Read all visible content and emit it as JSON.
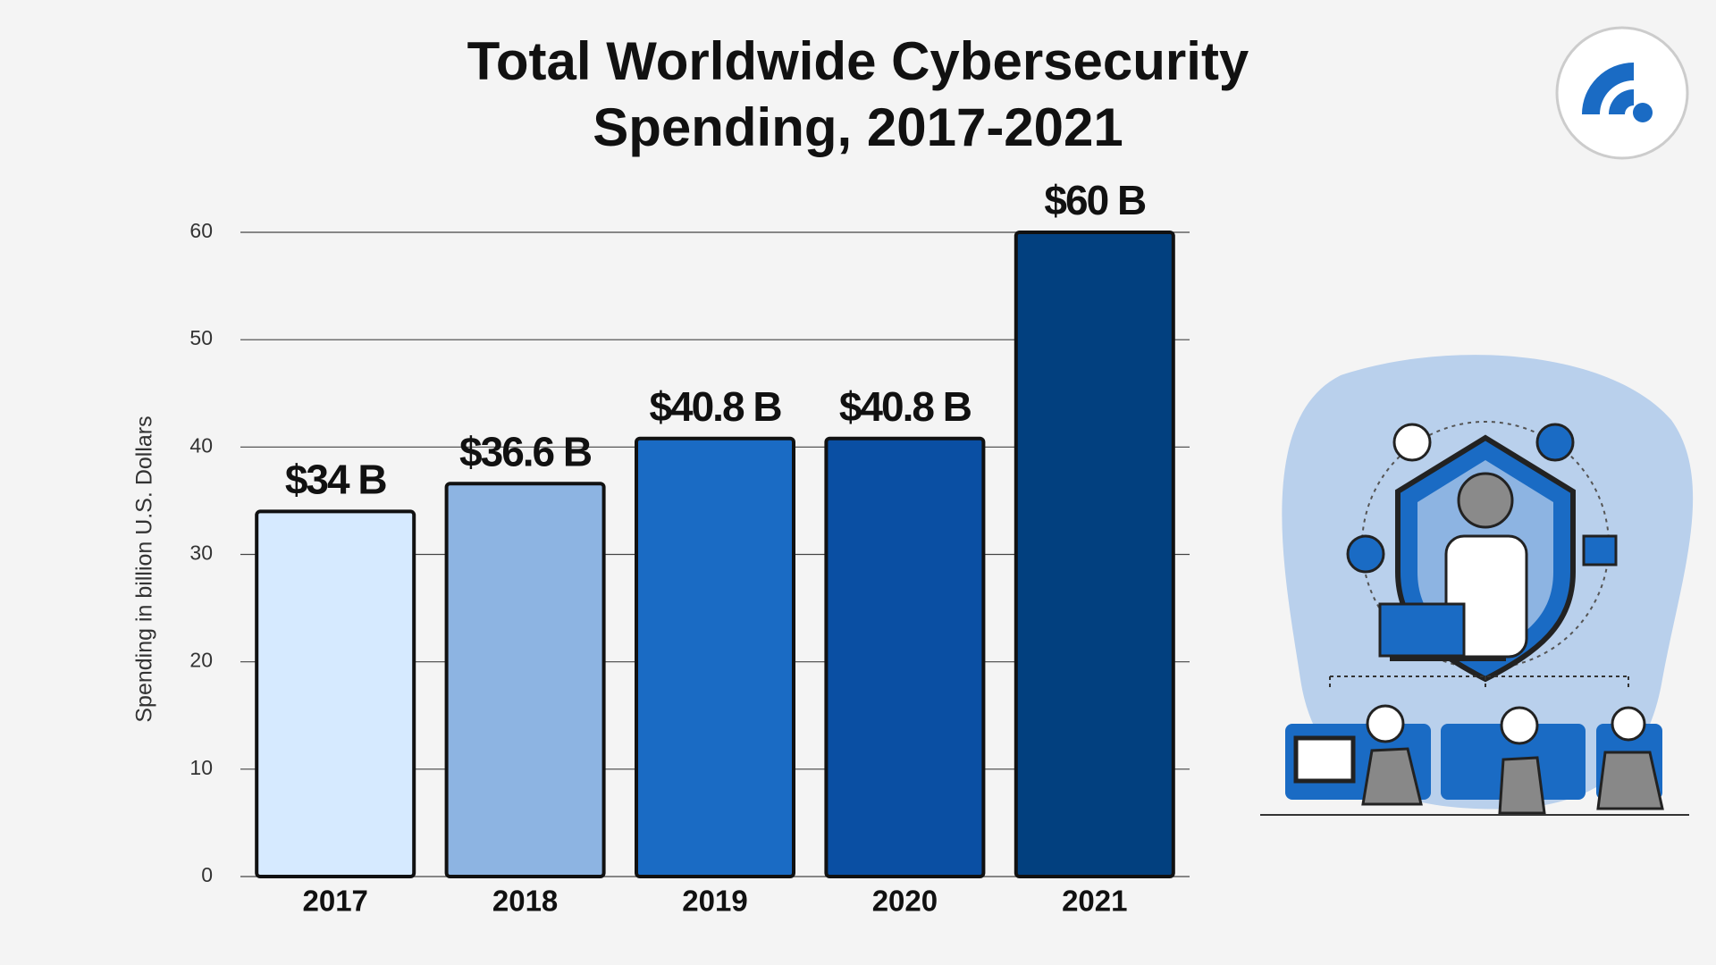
{
  "chart_data": {
    "type": "bar",
    "title": "Total Worldwide Cybersecurity Spending, 2017-2021",
    "y_label": "Spending in billion U.S. Dollars",
    "categories": [
      "2017",
      "2018",
      "2019",
      "2020",
      "2021"
    ],
    "values": [
      34,
      36.6,
      40.8,
      40.8,
      60
    ],
    "value_labels": [
      "$34 B",
      "$36.6 B",
      "$40.8 B",
      "$40.8 B",
      "$60 B"
    ],
    "colors": [
      "#d6eaff",
      "#8db4e2",
      "#1a6bc4",
      "#0a4fa3",
      "#02407f"
    ],
    "ylim": [
      0,
      60
    ],
    "yticks": [
      0,
      10,
      20,
      30,
      40,
      50,
      60
    ],
    "grid": true
  }
}
